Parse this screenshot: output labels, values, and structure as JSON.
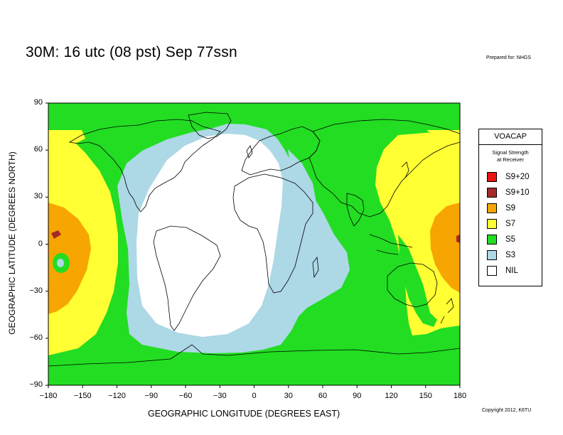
{
  "title": "30M:  16 utc (08 pst) Sep 77ssn",
  "prepared_for": "Prepared for: NHGS",
  "copyright": "Copyright 2012, K6TU",
  "axes": {
    "ylabel": "GEOGRAPHIC LATITUDE (DEGREES NORTH)",
    "xlabel": "GEOGRAPHIC LONGITUDE (DEGREES EAST)",
    "yticks": [
      "90",
      "60",
      "30",
      "0",
      "−30",
      "−60",
      "−90"
    ],
    "xticks": [
      "−180",
      "−150",
      "−120",
      "−90",
      "−60",
      "−30",
      "0",
      "30",
      "60",
      "90",
      "120",
      "150",
      "180"
    ],
    "lon_range": [
      -180,
      180
    ],
    "lat_range": [
      -90,
      90
    ]
  },
  "legend": {
    "title": "VOACAP",
    "subtitle_line1": "Signal Strength",
    "subtitle_line2": "at Receiver",
    "items": [
      {
        "label": "S9+20",
        "color": "#ee1111"
      },
      {
        "label": "S9+10",
        "color": "#a52a2a"
      },
      {
        "label": "S9",
        "color": "#f7a500"
      },
      {
        "label": "S7",
        "color": "#ffff33"
      },
      {
        "label": "S5",
        "color": "#22dd22"
      },
      {
        "label": "S3",
        "color": "#add8e6"
      },
      {
        "label": "NIL",
        "color": "#ffffff"
      }
    ]
  },
  "map": {
    "type": "coverage-map",
    "projection": "equirectangular",
    "background_level": "S5",
    "colors": {
      "S5": "#22dd22",
      "S3": "#add8e6",
      "NIL": "#ffffff",
      "S7": "#ffff33",
      "S9": "#f7a500",
      "S9+10": "#a52a2a"
    }
  }
}
